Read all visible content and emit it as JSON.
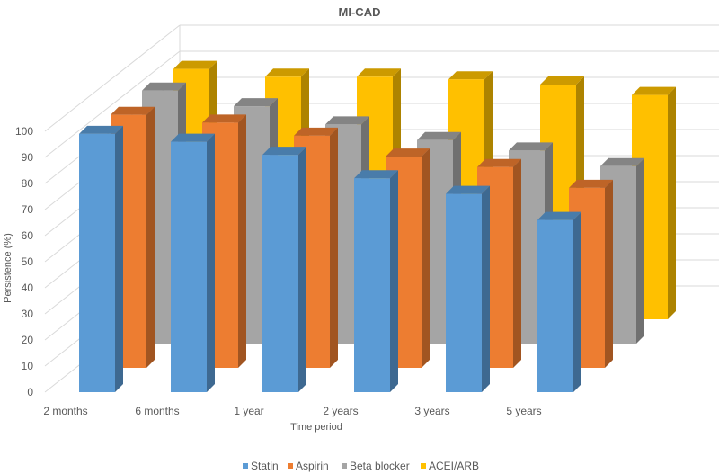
{
  "chart_data": {
    "type": "bar",
    "style": "3d-clustered-depth",
    "title": "MI-CAD",
    "xlabel": "Time period",
    "ylabel": "Persistence (%)",
    "ylim": [
      0,
      100
    ],
    "yticks": [
      0,
      10,
      20,
      30,
      40,
      50,
      60,
      70,
      80,
      90,
      100
    ],
    "grid": true,
    "legend_position": "bottom",
    "categories": [
      "2 months",
      "6 months",
      "1 year",
      "2 years",
      "3 years",
      "5 years"
    ],
    "series": [
      {
        "name": "Statin",
        "color": "#5B9BD5",
        "values": [
          99,
          96,
          91,
          82,
          76,
          66
        ]
      },
      {
        "name": "Aspirin",
        "color": "#ED7D31",
        "values": [
          97,
          94,
          89,
          81,
          77,
          69
        ]
      },
      {
        "name": "Beta blocker",
        "color": "#A5A5A5",
        "values": [
          97,
          91,
          84,
          78,
          74,
          68
        ]
      },
      {
        "name": "ACEI/ARB",
        "color": "#FFC000",
        "values": [
          96,
          93,
          93,
          92,
          90,
          86
        ]
      }
    ]
  }
}
